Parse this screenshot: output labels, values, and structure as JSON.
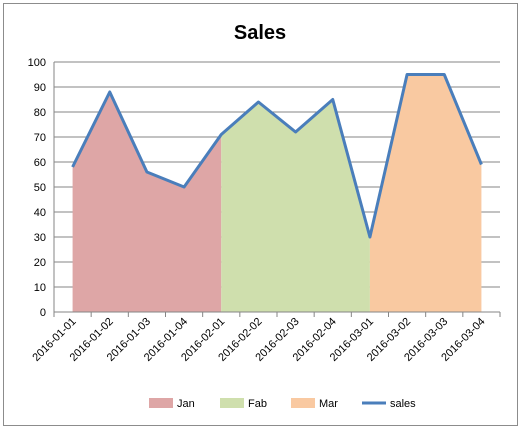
{
  "chart_data": {
    "type": "area",
    "title": "Sales",
    "xlabel": "",
    "ylabel": "",
    "ylim": [
      0,
      100
    ],
    "yticks": [
      0,
      10,
      20,
      30,
      40,
      50,
      60,
      70,
      80,
      90,
      100
    ],
    "categories": [
      "2016-01-01",
      "2016-01-02",
      "2016-01-03",
      "2016-01-04",
      "2016-02-01",
      "2016-02-02",
      "2016-02-03",
      "2016-02-04",
      "2016-03-01",
      "2016-03-02",
      "2016-03-03",
      "2016-03-04"
    ],
    "series": [
      {
        "name": "Jan",
        "type": "area",
        "color": "#dea6a6",
        "values": [
          58,
          88,
          56,
          50,
          71,
          null,
          null,
          null,
          null,
          null,
          null,
          null
        ]
      },
      {
        "name": "Fab",
        "type": "area",
        "color": "#cfdfad",
        "values": [
          null,
          null,
          null,
          null,
          71,
          84,
          72,
          85,
          30,
          null,
          null,
          null
        ]
      },
      {
        "name": "Mar",
        "type": "area",
        "color": "#f9c9a1",
        "values": [
          null,
          null,
          null,
          null,
          null,
          null,
          null,
          null,
          30,
          95,
          95,
          59
        ]
      },
      {
        "name": "sales",
        "type": "line",
        "color": "#4a7ebb",
        "values": [
          58,
          88,
          56,
          50,
          71,
          84,
          72,
          85,
          30,
          95,
          95,
          59
        ]
      }
    ],
    "grid": true,
    "legend_position": "bottom"
  }
}
